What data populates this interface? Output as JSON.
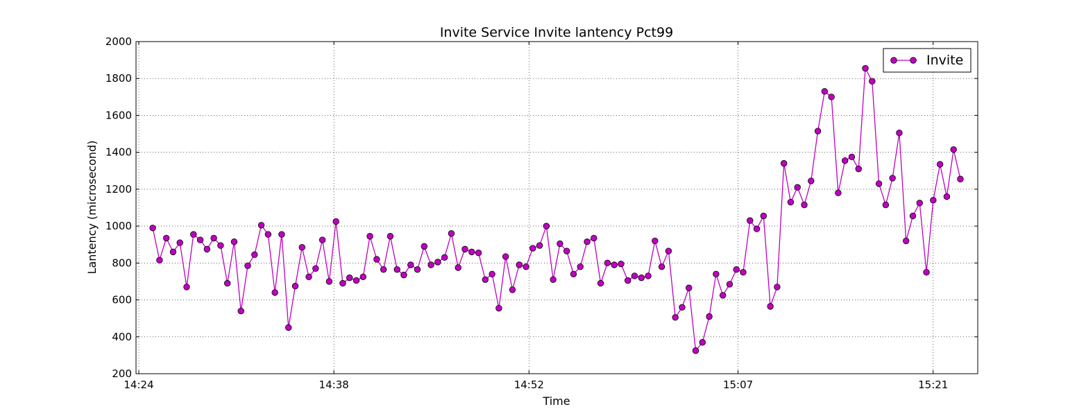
{
  "chart_data": {
    "type": "line",
    "title": "Invite Service Invite lantency Pct99",
    "xlabel": "Time",
    "ylabel": "Lantency (microsecond)",
    "x_tick_labels": [
      "14:24",
      "14:38",
      "14:52",
      "15:07",
      "15:21"
    ],
    "x_tick_minutes": [
      864,
      878,
      892,
      907,
      921
    ],
    "xlim_minutes": [
      863.8,
      924.2
    ],
    "ylim": [
      200,
      2000
    ],
    "y_ticks": [
      200,
      400,
      600,
      800,
      1000,
      1200,
      1400,
      1600,
      1800,
      2000
    ],
    "grid": true,
    "grid_style": "dotted",
    "legend_position": "top-right",
    "series": [
      {
        "name": "Invite",
        "color": "#c000c0",
        "marker": "circle",
        "x_start_minute": 865.0,
        "x_step_minutes": 0.487,
        "values": [
          990,
          815,
          935,
          860,
          910,
          670,
          955,
          925,
          875,
          935,
          895,
          690,
          915,
          540,
          785,
          845,
          1005,
          955,
          640,
          955,
          450,
          675,
          885,
          725,
          770,
          925,
          700,
          1025,
          690,
          720,
          705,
          725,
          945,
          820,
          765,
          945,
          765,
          735,
          790,
          765,
          890,
          790,
          805,
          830,
          960,
          775,
          875,
          860,
          855,
          710,
          740,
          555,
          835,
          655,
          790,
          780,
          880,
          895,
          1000,
          710,
          905,
          865,
          740,
          780,
          915,
          935,
          690,
          800,
          790,
          795,
          705,
          730,
          720,
          730,
          920,
          780,
          865,
          505,
          560,
          665,
          325,
          370,
          510,
          740,
          625,
          685,
          765,
          750,
          1030,
          985,
          1055,
          565,
          670,
          1340,
          1130,
          1210,
          1115,
          1245,
          1515,
          1730,
          1700,
          1180,
          1355,
          1375,
          1310,
          1855,
          1785,
          1230,
          1115,
          1260,
          1505,
          920,
          1055,
          1125,
          750,
          1140,
          1335,
          1160,
          1415,
          1255
        ]
      }
    ]
  }
}
